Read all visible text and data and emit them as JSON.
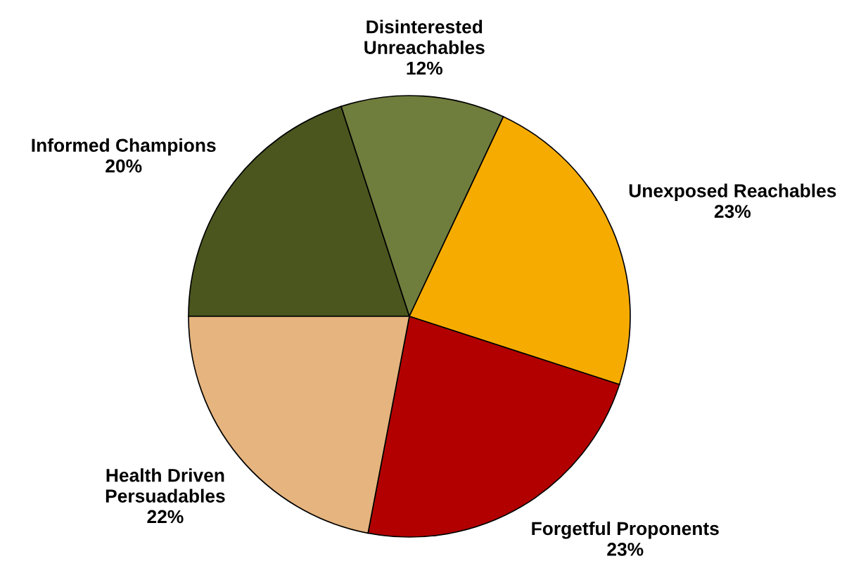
{
  "chart_data": {
    "type": "pie",
    "categories": [
      "Informed Champions",
      "Disinterested\nUnreachables",
      "Unexposed Reachables",
      "Forgetful Proponents",
      "Health Driven\nPersuadables"
    ],
    "values": [
      20,
      12,
      23,
      23,
      22
    ],
    "value_labels": [
      "20%",
      "12%",
      "23%",
      "23%",
      "22%"
    ],
    "colors": [
      "#4a561e",
      "#6f7d3d",
      "#f6ab00",
      "#b20000",
      "#e6b47e"
    ],
    "legend": false
  }
}
